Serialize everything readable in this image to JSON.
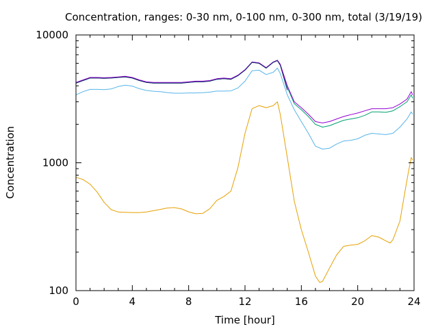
{
  "chart_data": {
    "type": "line",
    "title": "Concentration, ranges: 0-30 nm, 0-100 nm, 0-300 nm, total (3/19/19)",
    "xlabel": "Time [hour]",
    "ylabel": "Concentration",
    "xlim": [
      0,
      24
    ],
    "ylim": [
      100,
      10000
    ],
    "yscale": "log",
    "grid": false,
    "legend": "none",
    "x_ticks": [
      0,
      4,
      8,
      12,
      16,
      20,
      24
    ],
    "x_tick_labels": [
      "0",
      "4",
      "8",
      "12",
      "16",
      "20",
      "24"
    ],
    "y_ticks": [
      100,
      1000,
      10000
    ],
    "y_tick_labels": [
      "100",
      "1000",
      "10000"
    ],
    "series": [
      {
        "color": "#e69f00",
        "points": [
          [
            0,
            770
          ],
          [
            0.5,
            740
          ],
          [
            1,
            680
          ],
          [
            1.5,
            590
          ],
          [
            2,
            490
          ],
          [
            2.5,
            430
          ],
          [
            3,
            412
          ],
          [
            3.5,
            410
          ],
          [
            4,
            408
          ],
          [
            4.5,
            408
          ],
          [
            5,
            412
          ],
          [
            5.5,
            422
          ],
          [
            6,
            432
          ],
          [
            6.5,
            443
          ],
          [
            7,
            446
          ],
          [
            7.5,
            435
          ],
          [
            8,
            413
          ],
          [
            8.5,
            399
          ],
          [
            9,
            402
          ],
          [
            9.5,
            437
          ],
          [
            10,
            508
          ],
          [
            10.5,
            545
          ],
          [
            11,
            600
          ],
          [
            11.5,
            920
          ],
          [
            12,
            1700
          ],
          [
            12.5,
            2650
          ],
          [
            13,
            2800
          ],
          [
            13.5,
            2700
          ],
          [
            14,
            2800
          ],
          [
            14.3,
            3000
          ],
          [
            14.5,
            2400
          ],
          [
            15,
            1100
          ],
          [
            15.5,
            500
          ],
          [
            16,
            300
          ],
          [
            16.5,
            200
          ],
          [
            17,
            130
          ],
          [
            17.3,
            116
          ],
          [
            17.5,
            118
          ],
          [
            18,
            150
          ],
          [
            18.5,
            190
          ],
          [
            19,
            222
          ],
          [
            19.5,
            227
          ],
          [
            20,
            230
          ],
          [
            20.5,
            245
          ],
          [
            21,
            270
          ],
          [
            21.5,
            262
          ],
          [
            22,
            245
          ],
          [
            22.3,
            236
          ],
          [
            22.5,
            250
          ],
          [
            23,
            350
          ],
          [
            23.3,
            550
          ],
          [
            23.6,
            850
          ],
          [
            23.8,
            1100
          ],
          [
            23.9,
            1050
          ]
        ]
      },
      {
        "color": "#56b4e9",
        "points": [
          [
            0,
            3400
          ],
          [
            0.5,
            3600
          ],
          [
            1,
            3750
          ],
          [
            1.5,
            3750
          ],
          [
            2,
            3740
          ],
          [
            2.5,
            3780
          ],
          [
            3,
            3950
          ],
          [
            3.5,
            4050
          ],
          [
            4,
            3980
          ],
          [
            4.5,
            3800
          ],
          [
            5,
            3680
          ],
          [
            5.5,
            3630
          ],
          [
            6,
            3600
          ],
          [
            6.5,
            3540
          ],
          [
            7,
            3500
          ],
          [
            7.5,
            3500
          ],
          [
            8,
            3520
          ],
          [
            8.5,
            3520
          ],
          [
            9,
            3530
          ],
          [
            9.5,
            3570
          ],
          [
            10,
            3640
          ],
          [
            10.5,
            3640
          ],
          [
            11,
            3650
          ],
          [
            11.5,
            3850
          ],
          [
            12,
            4350
          ],
          [
            12.5,
            5250
          ],
          [
            13,
            5300
          ],
          [
            13.5,
            4900
          ],
          [
            14,
            5100
          ],
          [
            14.3,
            5500
          ],
          [
            14.5,
            5000
          ],
          [
            15,
            3400
          ],
          [
            15.5,
            2600
          ],
          [
            16,
            2100
          ],
          [
            16.5,
            1700
          ],
          [
            17,
            1350
          ],
          [
            17.5,
            1280
          ],
          [
            18,
            1300
          ],
          [
            18.5,
            1400
          ],
          [
            19,
            1480
          ],
          [
            19.5,
            1500
          ],
          [
            20,
            1540
          ],
          [
            20.5,
            1640
          ],
          [
            21,
            1700
          ],
          [
            21.5,
            1680
          ],
          [
            22,
            1660
          ],
          [
            22.5,
            1700
          ],
          [
            23,
            1900
          ],
          [
            23.5,
            2200
          ],
          [
            23.8,
            2500
          ],
          [
            23.9,
            2400
          ]
        ]
      },
      {
        "color": "#009e73",
        "points": [
          [
            0,
            4200
          ],
          [
            0.5,
            4400
          ],
          [
            1,
            4600
          ],
          [
            1.5,
            4600
          ],
          [
            2,
            4580
          ],
          [
            2.5,
            4600
          ],
          [
            3,
            4650
          ],
          [
            3.5,
            4700
          ],
          [
            4,
            4600
          ],
          [
            4.5,
            4400
          ],
          [
            5,
            4250
          ],
          [
            5.5,
            4200
          ],
          [
            6,
            4200
          ],
          [
            6.5,
            4200
          ],
          [
            7,
            4200
          ],
          [
            7.5,
            4200
          ],
          [
            8,
            4250
          ],
          [
            8.5,
            4300
          ],
          [
            9,
            4300
          ],
          [
            9.5,
            4350
          ],
          [
            10,
            4500
          ],
          [
            10.5,
            4550
          ],
          [
            11,
            4500
          ],
          [
            11.5,
            4800
          ],
          [
            12,
            5300
          ],
          [
            12.5,
            6100
          ],
          [
            13,
            6000
          ],
          [
            13.5,
            5500
          ],
          [
            14,
            6100
          ],
          [
            14.3,
            6300
          ],
          [
            14.5,
            5800
          ],
          [
            15,
            3900
          ],
          [
            15.5,
            2900
          ],
          [
            16,
            2600
          ],
          [
            16.5,
            2300
          ],
          [
            17,
            2000
          ],
          [
            17.5,
            1900
          ],
          [
            18,
            1950
          ],
          [
            18.5,
            2050
          ],
          [
            19,
            2150
          ],
          [
            19.5,
            2200
          ],
          [
            20,
            2250
          ],
          [
            20.5,
            2350
          ],
          [
            21,
            2500
          ],
          [
            21.5,
            2500
          ],
          [
            22,
            2480
          ],
          [
            22.5,
            2550
          ],
          [
            23,
            2750
          ],
          [
            23.5,
            3000
          ],
          [
            23.8,
            3400
          ],
          [
            23.9,
            3200
          ]
        ]
      },
      {
        "color": "#9400d3",
        "points": [
          [
            0,
            4250
          ],
          [
            0.5,
            4450
          ],
          [
            1,
            4650
          ],
          [
            1.5,
            4650
          ],
          [
            2,
            4630
          ],
          [
            2.5,
            4650
          ],
          [
            3,
            4700
          ],
          [
            3.5,
            4750
          ],
          [
            4,
            4650
          ],
          [
            4.5,
            4450
          ],
          [
            5,
            4300
          ],
          [
            5.5,
            4250
          ],
          [
            6,
            4250
          ],
          [
            6.5,
            4250
          ],
          [
            7,
            4250
          ],
          [
            7.5,
            4250
          ],
          [
            8,
            4300
          ],
          [
            8.5,
            4350
          ],
          [
            9,
            4350
          ],
          [
            9.5,
            4400
          ],
          [
            10,
            4550
          ],
          [
            10.5,
            4600
          ],
          [
            11,
            4550
          ],
          [
            11.5,
            4850
          ],
          [
            12,
            5350
          ],
          [
            12.5,
            6150
          ],
          [
            13,
            6050
          ],
          [
            13.5,
            5550
          ],
          [
            14,
            6150
          ],
          [
            14.3,
            6350
          ],
          [
            14.5,
            5900
          ],
          [
            15,
            4000
          ],
          [
            15.5,
            3000
          ],
          [
            16,
            2700
          ],
          [
            16.5,
            2400
          ],
          [
            17,
            2100
          ],
          [
            17.5,
            2050
          ],
          [
            18,
            2100
          ],
          [
            18.5,
            2200
          ],
          [
            19,
            2300
          ],
          [
            19.5,
            2380
          ],
          [
            20,
            2450
          ],
          [
            20.5,
            2550
          ],
          [
            21,
            2650
          ],
          [
            21.5,
            2650
          ],
          [
            22,
            2650
          ],
          [
            22.5,
            2700
          ],
          [
            23,
            2880
          ],
          [
            23.5,
            3150
          ],
          [
            23.8,
            3600
          ],
          [
            23.9,
            3400
          ]
        ]
      },
      {
        "color": "#1b2a6b",
        "points": [
          [
            0,
            4200
          ],
          [
            0.5,
            4400
          ],
          [
            1,
            4600
          ],
          [
            1.5,
            4600
          ],
          [
            2,
            4580
          ],
          [
            2.5,
            4600
          ],
          [
            3,
            4650
          ],
          [
            3.5,
            4700
          ],
          [
            4,
            4600
          ],
          [
            4.5,
            4400
          ],
          [
            5,
            4250
          ],
          [
            5.5,
            4200
          ],
          [
            6,
            4200
          ],
          [
            6.5,
            4200
          ],
          [
            7,
            4200
          ],
          [
            7.5,
            4200
          ],
          [
            8,
            4250
          ],
          [
            8.5,
            4300
          ],
          [
            9,
            4300
          ],
          [
            9.5,
            4350
          ],
          [
            10,
            4500
          ],
          [
            10.5,
            4550
          ],
          [
            11,
            4500
          ],
          [
            11.5,
            4800
          ],
          [
            12,
            5300
          ],
          [
            12.5,
            6100
          ],
          [
            13,
            6000
          ],
          [
            13.5,
            5500
          ],
          [
            14,
            6100
          ],
          [
            14.3,
            6300
          ],
          [
            14.5,
            5800
          ],
          [
            15,
            3700
          ]
        ]
      }
    ]
  }
}
